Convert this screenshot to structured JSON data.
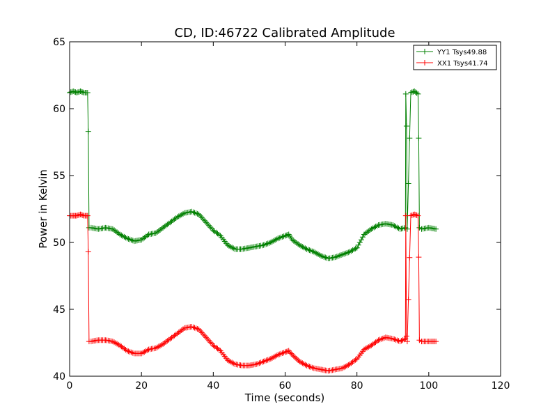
{
  "chart_data": {
    "type": "line",
    "title": "CD, ID:46722 Calibrated Amplitude",
    "xlabel": "Time (seconds)",
    "ylabel": "Power in Kelvin",
    "xlim": [
      0,
      120
    ],
    "ylim": [
      40,
      65
    ],
    "xticks": [
      0,
      20,
      40,
      60,
      80,
      100,
      120
    ],
    "yticks": [
      40,
      45,
      50,
      55,
      60,
      65
    ],
    "grid": false,
    "legend_position": "top-right",
    "marker": "+",
    "series": [
      {
        "name": "YY1 Tsys49.88",
        "color": "#008000",
        "x": [
          0,
          1,
          2,
          3,
          4,
          5,
          5.2,
          5.4,
          6,
          8,
          10,
          12,
          14,
          16,
          18,
          20,
          22,
          24,
          26,
          28,
          30,
          32,
          34,
          36,
          38,
          40,
          42,
          44,
          46,
          48,
          50,
          52,
          54,
          56,
          58,
          60,
          61,
          62,
          64,
          66,
          68,
          70,
          72,
          74,
          76,
          78,
          80,
          82,
          84,
          86,
          88,
          90,
          92,
          93.5,
          93.6,
          93.8,
          94,
          95,
          96,
          97,
          97.2,
          97.4,
          98,
          100,
          102
        ],
        "y": [
          61.2,
          61.3,
          61.2,
          61.3,
          61.2,
          61.2,
          58.3,
          51.1,
          51.1,
          51.0,
          51.1,
          51.0,
          50.6,
          50.3,
          50.1,
          50.2,
          50.6,
          50.7,
          51.1,
          51.5,
          51.9,
          52.2,
          52.3,
          52.1,
          51.5,
          50.9,
          50.5,
          49.8,
          49.5,
          49.5,
          49.6,
          49.7,
          49.8,
          50.0,
          50.3,
          50.5,
          50.6,
          50.2,
          49.8,
          49.5,
          49.3,
          49.0,
          48.8,
          48.9,
          49.1,
          49.3,
          49.6,
          50.6,
          51.0,
          51.3,
          51.4,
          51.3,
          51.0,
          51.1,
          61.1,
          58.7,
          51.0,
          61.2,
          61.3,
          61.1,
          57.8,
          51.1,
          51.0,
          51.1,
          51.0
        ]
      },
      {
        "name": "XX1 Tsys41.74",
        "color": "#ff0000",
        "x": [
          0,
          1,
          2,
          3,
          4,
          5,
          5.2,
          5.4,
          6,
          8,
          10,
          12,
          14,
          16,
          18,
          20,
          22,
          24,
          26,
          28,
          30,
          32,
          34,
          36,
          38,
          40,
          42,
          44,
          46,
          48,
          50,
          52,
          54,
          56,
          58,
          60,
          61,
          62,
          64,
          66,
          68,
          70,
          72,
          74,
          76,
          78,
          80,
          82,
          84,
          86,
          88,
          90,
          92,
          93.5,
          93.6,
          93.8,
          94,
          95,
          96,
          97,
          97.2,
          97.4,
          98,
          100,
          102
        ],
        "y": [
          52.0,
          52.0,
          52.0,
          52.1,
          52.0,
          52.0,
          49.3,
          42.6,
          42.6,
          42.7,
          42.7,
          42.6,
          42.3,
          41.9,
          41.7,
          41.7,
          42.0,
          42.1,
          42.4,
          42.8,
          43.2,
          43.6,
          43.7,
          43.5,
          42.9,
          42.3,
          41.9,
          41.2,
          40.9,
          40.8,
          40.8,
          40.9,
          41.1,
          41.3,
          41.6,
          41.8,
          41.9,
          41.6,
          41.1,
          40.8,
          40.6,
          40.5,
          40.4,
          40.5,
          40.6,
          40.9,
          41.3,
          42.0,
          42.3,
          42.7,
          42.9,
          42.8,
          42.6,
          42.8,
          52.0,
          43.0,
          42.6,
          52.0,
          52.1,
          52.0,
          48.9,
          42.7,
          42.6,
          42.6,
          42.6
        ]
      }
    ]
  }
}
